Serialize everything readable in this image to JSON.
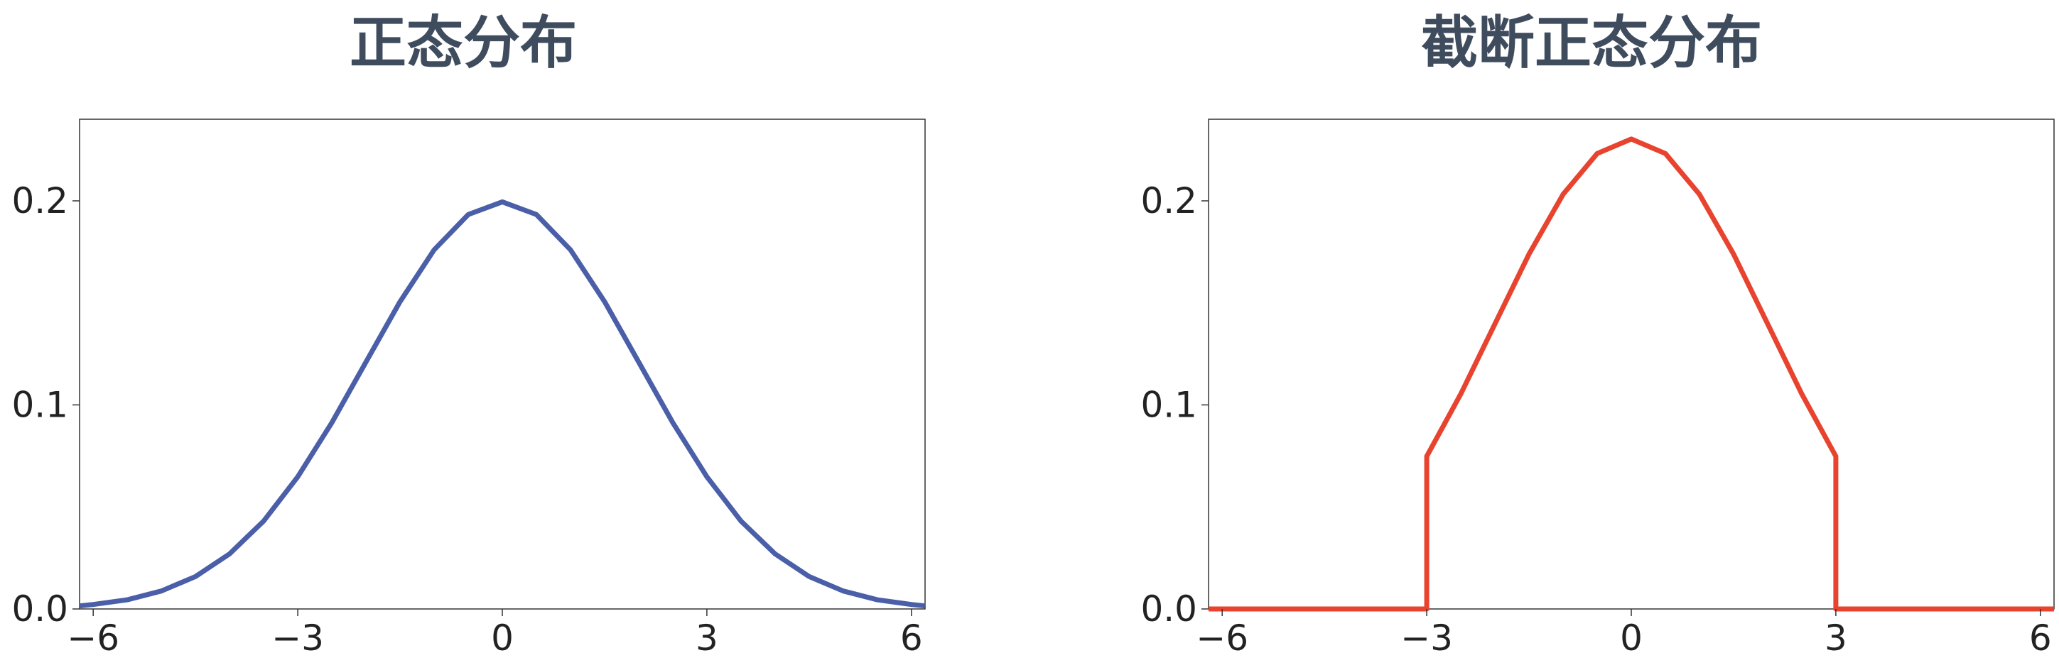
{
  "chart_data": [
    {
      "type": "line",
      "title": "正态分布",
      "xlabel": "",
      "ylabel": "",
      "xlim": [
        -6.2,
        6.2
      ],
      "ylim": [
        0,
        0.24
      ],
      "xticks": [
        -6,
        -3,
        0,
        3,
        6
      ],
      "xtick_labels": [
        "−6",
        "−3",
        "0",
        "3",
        "6"
      ],
      "yticks": [
        0,
        0.1,
        0.2
      ],
      "ytick_labels": [
        "0.0",
        "0.1",
        "0.2"
      ],
      "grid": false,
      "legend": "none",
      "series": [
        {
          "color": "#4a5fa8",
          "distribution": "normal",
          "mean": 0,
          "std": 2,
          "x": [
            -6.2,
            -6,
            -5.5,
            -5,
            -4.5,
            -4,
            -3.5,
            -3,
            -2.5,
            -2,
            -1.5,
            -1,
            -0.5,
            0,
            0.5,
            1,
            1.5,
            2,
            2.5,
            3,
            3.5,
            4,
            4.5,
            5,
            5.5,
            6,
            6.2
          ],
          "y": [
            0.0015,
            0.0022,
            0.0045,
            0.0088,
            0.0159,
            0.027,
            0.0431,
            0.0648,
            0.0913,
            0.121,
            0.1506,
            0.176,
            0.1933,
            0.1995,
            0.1933,
            0.176,
            0.1506,
            0.121,
            0.0913,
            0.0648,
            0.0431,
            0.027,
            0.0159,
            0.0088,
            0.0045,
            0.0022,
            0.0015
          ]
        }
      ]
    },
    {
      "type": "line",
      "title": "截断正态分布",
      "xlabel": "",
      "ylabel": "",
      "xlim": [
        -6.2,
        6.2
      ],
      "ylim": [
        0,
        0.24
      ],
      "xticks": [
        -6,
        -3,
        0,
        3,
        6
      ],
      "xtick_labels": [
        "−6",
        "−3",
        "0",
        "3",
        "6"
      ],
      "yticks": [
        0,
        0.1,
        0.2
      ],
      "ytick_labels": [
        "0.0",
        "0.1",
        "0.2"
      ],
      "grid": false,
      "legend": "none",
      "series": [
        {
          "color": "#e8432e",
          "distribution": "truncated normal",
          "mean": 0,
          "std": 2,
          "truncation": [
            -3,
            3
          ],
          "x": [
            -6.2,
            -3,
            -3,
            -2.5,
            -2,
            -1.5,
            -1,
            -0.5,
            0,
            0.5,
            1,
            1.5,
            2,
            2.5,
            3,
            3,
            6.2
          ],
          "y": [
            0,
            0,
            0.0748,
            0.1054,
            0.1397,
            0.1739,
            0.2032,
            0.2232,
            0.2303,
            0.2232,
            0.2032,
            0.1739,
            0.1397,
            0.1054,
            0.0748,
            0,
            0
          ]
        }
      ]
    }
  ]
}
